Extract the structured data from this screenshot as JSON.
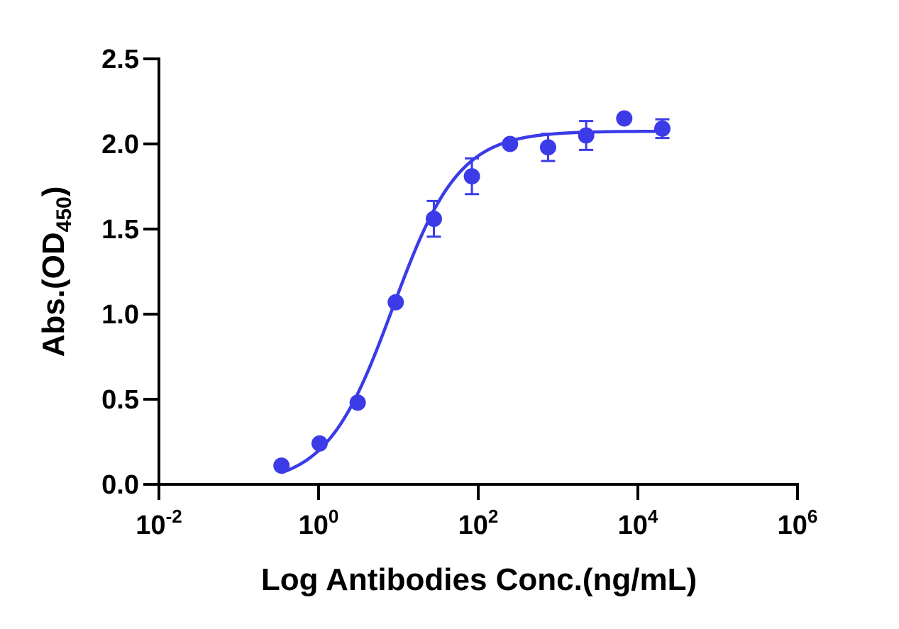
{
  "chart_data": {
    "type": "scatter",
    "xlabel": "Log Antibodies Conc.(ng/mL)",
    "ylabel": {
      "main": "Abs.(OD",
      "sub": "450",
      "close": ")"
    },
    "x_scale": "log",
    "xlim": [
      0.01,
      1000000
    ],
    "ylim": [
      0,
      2.5
    ],
    "x_ticks": [
      {
        "value": 0.01,
        "base": "10",
        "exp": "-2"
      },
      {
        "value": 1,
        "base": "10",
        "exp": "0"
      },
      {
        "value": 100,
        "base": "10",
        "exp": "2"
      },
      {
        "value": 10000,
        "base": "10",
        "exp": "4"
      },
      {
        "value": 1000000,
        "base": "10",
        "exp": "6"
      }
    ],
    "y_ticks": [
      {
        "value": 0,
        "label": "0.0"
      },
      {
        "value": 0.5,
        "label": "0.5"
      },
      {
        "value": 1.0,
        "label": "1.0"
      },
      {
        "value": 1.5,
        "label": "1.5"
      },
      {
        "value": 2.0,
        "label": "2.0"
      },
      {
        "value": 2.5,
        "label": "2.5"
      }
    ],
    "color": "#3b3be8",
    "series": [
      {
        "points": [
          {
            "x": 0.343,
            "y": 0.11,
            "err": 0
          },
          {
            "x": 1.03,
            "y": 0.24,
            "err": 0
          },
          {
            "x": 3.09,
            "y": 0.48,
            "err": 0
          },
          {
            "x": 9.26,
            "y": 1.07,
            "err": 0
          },
          {
            "x": 27.8,
            "y": 1.56,
            "err": 0.105
          },
          {
            "x": 83.3,
            "y": 1.81,
            "err": 0.105
          },
          {
            "x": 250,
            "y": 2.0,
            "err": 0
          },
          {
            "x": 750,
            "y": 1.98,
            "err": 0.08
          },
          {
            "x": 2250,
            "y": 2.05,
            "err": 0.085
          },
          {
            "x": 6750,
            "y": 2.15,
            "err": 0
          },
          {
            "x": 20250,
            "y": 2.09,
            "err": 0.055
          }
        ]
      }
    ],
    "fit_curve": {
      "model": "4PL",
      "bottom": 0.0,
      "top": 2.075,
      "ec50": 8.5,
      "hill": 1.05,
      "x_range": [
        0.343,
        20250
      ]
    }
  }
}
